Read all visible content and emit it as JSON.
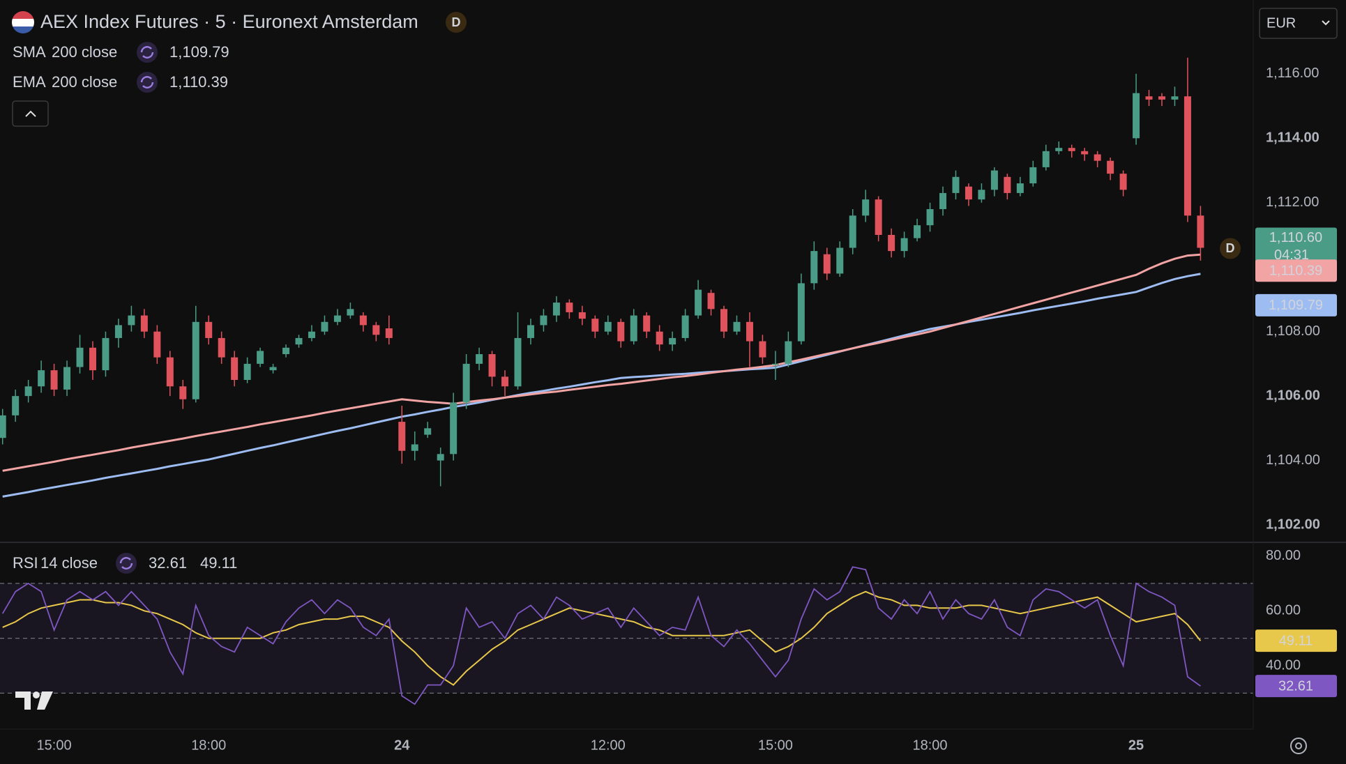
{
  "header": {
    "title": "AEX Index Futures · 5 · Euronext Amsterdam",
    "badge": "D",
    "currency": "EUR"
  },
  "chart_data": [
    {
      "type": "candlestick",
      "categories": [
        null,
        null,
        null,
        null,
        "15:00",
        null,
        null,
        null,
        null,
        null,
        null,
        null,
        null,
        null,
        null,
        null,
        "18:00",
        null,
        null,
        null,
        null,
        null,
        null,
        null,
        null,
        null,
        null,
        null,
        null,
        null,
        null,
        "24",
        null,
        null,
        null,
        null,
        null,
        null,
        null,
        null,
        null,
        null,
        null,
        null,
        null,
        null,
        null,
        "12:00",
        null,
        null,
        null,
        null,
        null,
        null,
        null,
        null,
        null,
        null,
        null,
        null,
        "15:00",
        null,
        null,
        null,
        null,
        null,
        null,
        null,
        null,
        null,
        null,
        null,
        "18:00",
        null,
        null,
        null,
        null,
        null,
        null,
        null,
        null,
        null,
        null,
        null,
        null,
        null,
        null,
        null,
        "25",
        null,
        null,
        null,
        null,
        null
      ],
      "open": [
        1104.7,
        1105.4,
        1106.0,
        1106.3,
        1106.8,
        1106.2,
        1106.9,
        1107.5,
        1106.8,
        1107.8,
        1108.2,
        1108.5,
        1108.0,
        1107.2,
        1106.3,
        1105.9,
        1108.3,
        1107.8,
        1107.2,
        1106.5,
        1107.0,
        1106.8,
        1107.3,
        1107.6,
        1107.8,
        1108.0,
        1108.3,
        1108.5,
        1108.5,
        1108.2,
        1108.1,
        1105.2,
        1104.3,
        1104.8,
        1104.0,
        1104.2,
        1105.8,
        1107.0,
        1107.3,
        1106.6,
        1106.3,
        1107.8,
        1108.2,
        1108.5,
        1108.9,
        1108.6,
        1108.4,
        1108.0,
        1108.3,
        1107.7,
        1108.5,
        1108.0,
        1107.6,
        1107.8,
        1108.5,
        1109.2,
        1108.7,
        1108.0,
        1108.3,
        1107.7,
        1107.0,
        1107.0,
        1107.7,
        1109.5,
        1110.4,
        1109.8,
        1110.6,
        1111.6,
        1112.1,
        1111.0,
        1110.5,
        1110.9,
        1111.3,
        1111.8,
        1112.3,
        1112.5,
        1112.1,
        1112.4,
        1112.8,
        1112.3,
        1112.6,
        1113.1,
        1113.6,
        1113.7,
        1113.6,
        1113.5,
        1113.3,
        1112.9,
        1114.0,
        1115.3,
        1115.3,
        1115.2,
        1115.3,
        1111.6
      ],
      "high": [
        1105.6,
        1106.2,
        1106.5,
        1107.1,
        1107.0,
        1107.1,
        1107.9,
        1107.7,
        1108.0,
        1108.4,
        1108.8,
        1108.7,
        1108.2,
        1107.4,
        1106.5,
        1108.8,
        1108.5,
        1108.0,
        1107.4,
        1107.2,
        1107.5,
        1107.0,
        1107.6,
        1107.9,
        1108.2,
        1108.5,
        1108.7,
        1108.9,
        1108.6,
        1108.3,
        1108.5,
        1105.7,
        1104.9,
        1105.2,
        1104.4,
        1106.1,
        1107.3,
        1107.5,
        1107.4,
        1106.8,
        1108.6,
        1108.4,
        1108.7,
        1109.1,
        1109.0,
        1108.8,
        1108.5,
        1108.5,
        1108.4,
        1108.7,
        1108.6,
        1108.2,
        1108.0,
        1108.7,
        1109.6,
        1109.3,
        1108.8,
        1108.5,
        1108.6,
        1107.9,
        1107.4,
        1108.0,
        1109.8,
        1110.8,
        1110.6,
        1110.8,
        1111.8,
        1112.4,
        1112.2,
        1111.2,
        1111.1,
        1111.5,
        1112.0,
        1112.5,
        1113.0,
        1112.6,
        1112.6,
        1113.1,
        1112.9,
        1112.8,
        1113.3,
        1113.8,
        1113.9,
        1113.8,
        1113.7,
        1113.6,
        1113.4,
        1113.0,
        1116.0,
        1115.5,
        1115.4,
        1115.6,
        1116.5,
        1111.9
      ],
      "low": [
        1104.5,
        1105.2,
        1105.8,
        1106.1,
        1106.0,
        1106.0,
        1106.7,
        1106.5,
        1106.6,
        1107.5,
        1108.0,
        1107.8,
        1107.0,
        1106.0,
        1105.6,
        1105.8,
        1107.6,
        1107.0,
        1106.3,
        1106.4,
        1106.9,
        1106.7,
        1107.2,
        1107.5,
        1107.7,
        1107.9,
        1108.2,
        1108.4,
        1108.0,
        1107.7,
        1107.6,
        1103.9,
        1104.0,
        1104.7,
        1103.2,
        1104.0,
        1105.6,
        1106.8,
        1106.3,
        1106.0,
        1106.2,
        1107.6,
        1108.0,
        1108.3,
        1108.4,
        1108.2,
        1107.8,
        1107.9,
        1107.5,
        1107.6,
        1107.8,
        1107.4,
        1107.4,
        1107.7,
        1108.4,
        1108.5,
        1107.8,
        1107.9,
        1106.9,
        1107.0,
        1106.5,
        1106.9,
        1107.6,
        1109.3,
        1109.6,
        1109.7,
        1110.4,
        1111.4,
        1110.8,
        1110.3,
        1110.3,
        1110.8,
        1111.1,
        1111.6,
        1112.1,
        1111.9,
        1112.0,
        1112.2,
        1112.1,
        1112.2,
        1112.5,
        1113.0,
        1113.5,
        1113.4,
        1113.3,
        1113.1,
        1112.7,
        1112.2,
        1113.8,
        1115.0,
        1115.0,
        1115.0,
        1111.4,
        1110.2
      ],
      "close": [
        1105.4,
        1106.0,
        1106.3,
        1106.8,
        1106.2,
        1106.9,
        1107.5,
        1106.8,
        1107.8,
        1108.2,
        1108.5,
        1108.0,
        1107.2,
        1106.3,
        1105.9,
        1108.3,
        1107.8,
        1107.2,
        1106.5,
        1107.0,
        1107.4,
        1106.9,
        1107.5,
        1107.8,
        1108.0,
        1108.3,
        1108.5,
        1108.7,
        1108.2,
        1107.9,
        1107.8,
        1104.3,
        1104.5,
        1105.0,
        1104.2,
        1105.8,
        1107.0,
        1107.3,
        1106.6,
        1106.3,
        1107.8,
        1108.2,
        1108.5,
        1108.9,
        1108.6,
        1108.4,
        1108.0,
        1108.3,
        1107.7,
        1108.5,
        1108.0,
        1107.6,
        1107.8,
        1108.5,
        1109.3,
        1108.7,
        1108.0,
        1108.3,
        1107.7,
        1107.2,
        1107.0,
        1107.7,
        1109.5,
        1110.5,
        1109.8,
        1110.6,
        1111.6,
        1112.1,
        1111.0,
        1110.5,
        1110.9,
        1111.3,
        1111.8,
        1112.3,
        1112.8,
        1112.1,
        1112.4,
        1113.0,
        1112.3,
        1112.6,
        1113.1,
        1113.6,
        1113.7,
        1113.6,
        1113.5,
        1113.3,
        1112.9,
        1112.4,
        1115.4,
        1115.2,
        1115.2,
        1115.3,
        1111.6,
        1110.6
      ],
      "up_color": "#4a9c86",
      "down_color": "#e0535d",
      "series": [
        {
          "name": "SMA",
          "params": "200 close",
          "color": "#9dbcf2",
          "last_label": "1,109.79",
          "values": [
            1102.88,
            1102.95,
            1103.02,
            1103.1,
            1103.17,
            1103.24,
            1103.31,
            1103.38,
            1103.46,
            1103.53,
            1103.6,
            1103.67,
            1103.74,
            1103.82,
            1103.89,
            1103.96,
            1104.03,
            1104.12,
            1104.21,
            1104.3,
            1104.39,
            1104.47,
            1104.56,
            1104.65,
            1104.74,
            1104.83,
            1104.92,
            1105.0,
            1105.09,
            1105.18,
            1105.27,
            1105.36,
            1105.43,
            1105.51,
            1105.58,
            1105.66,
            1105.73,
            1105.8,
            1105.88,
            1105.95,
            1106.03,
            1106.1,
            1106.16,
            1106.23,
            1106.29,
            1106.36,
            1106.43,
            1106.49,
            1106.56,
            1106.59,
            1106.61,
            1106.64,
            1106.67,
            1106.69,
            1106.72,
            1106.75,
            1106.77,
            1106.8,
            1106.83,
            1106.85,
            1106.88,
            1106.98,
            1107.08,
            1107.18,
            1107.28,
            1107.38,
            1107.48,
            1107.58,
            1107.68,
            1107.78,
            1107.88,
            1107.98,
            1108.08,
            1108.15,
            1108.22,
            1108.3,
            1108.37,
            1108.44,
            1108.51,
            1108.58,
            1108.66,
            1108.73,
            1108.8,
            1108.87,
            1108.94,
            1109.02,
            1109.09,
            1109.16,
            1109.23,
            1109.37,
            1109.51,
            1109.63,
            1109.72,
            1109.79
          ]
        },
        {
          "name": "EMA",
          "params": "200 close",
          "color": "#f2a3a3",
          "last_label": "1,110.39",
          "values": [
            1103.68,
            1103.75,
            1103.82,
            1103.89,
            1103.96,
            1104.04,
            1104.11,
            1104.18,
            1104.25,
            1104.32,
            1104.4,
            1104.47,
            1104.54,
            1104.61,
            1104.68,
            1104.76,
            1104.83,
            1104.9,
            1104.97,
            1105.04,
            1105.12,
            1105.19,
            1105.26,
            1105.33,
            1105.4,
            1105.48,
            1105.55,
            1105.62,
            1105.69,
            1105.76,
            1105.83,
            1105.9,
            1105.86,
            1105.82,
            1105.79,
            1105.76,
            1105.81,
            1105.86,
            1105.9,
            1105.95,
            1106.0,
            1106.05,
            1106.1,
            1106.14,
            1106.19,
            1106.24,
            1106.29,
            1106.34,
            1106.38,
            1106.43,
            1106.48,
            1106.53,
            1106.58,
            1106.62,
            1106.67,
            1106.72,
            1106.77,
            1106.82,
            1106.86,
            1106.91,
            1106.96,
            1107.05,
            1107.13,
            1107.22,
            1107.31,
            1107.39,
            1107.48,
            1107.57,
            1107.65,
            1107.74,
            1107.83,
            1107.91,
            1108.0,
            1108.11,
            1108.22,
            1108.33,
            1108.44,
            1108.55,
            1108.66,
            1108.77,
            1108.88,
            1108.99,
            1109.1,
            1109.21,
            1109.32,
            1109.43,
            1109.54,
            1109.65,
            1109.76,
            1109.95,
            1110.12,
            1110.26,
            1110.36,
            1110.39
          ]
        }
      ],
      "ylim": [
        1101.46,
        1118.29
      ],
      "yticks": [
        {
          "value": 1102,
          "label": "1,102.00"
        },
        {
          "value": 1104,
          "label": "1,104.00"
        },
        {
          "value": 1106,
          "label": "1,106.00"
        },
        {
          "value": 1108,
          "label": "1,108.00"
        },
        {
          "value": 1110,
          "label": "1,110.00"
        },
        {
          "value": 1112,
          "label": "1,112.00"
        },
        {
          "value": 1114,
          "label": "1,114.00"
        },
        {
          "value": 1116,
          "label": "1,116.00"
        }
      ],
      "last_price": {
        "value": 1110.6,
        "label": "1,110.60"
      },
      "countdown": "04:31",
      "marker": "D",
      "grid": true
    },
    {
      "type": "line",
      "series": [
        {
          "name": "RSI",
          "params": "14 close",
          "color": "#7e57c2",
          "last_label": "32.61",
          "values": [
            59,
            67,
            70,
            67,
            53,
            64,
            67,
            64,
            67,
            62,
            67,
            62,
            57,
            45,
            37,
            62,
            51,
            47,
            45,
            54,
            51,
            48,
            56,
            61,
            64,
            59,
            64,
            61,
            54,
            51,
            57,
            29,
            26,
            33,
            33,
            40,
            61,
            54,
            56,
            50,
            59,
            62,
            57,
            65,
            62,
            57,
            59,
            61,
            54,
            61,
            56,
            51,
            54,
            53,
            65,
            51,
            47,
            53,
            48,
            42,
            36,
            42,
            57,
            68,
            64,
            67,
            76,
            75,
            61,
            57,
            64,
            59,
            67,
            57,
            64,
            59,
            57,
            64,
            54,
            51,
            64,
            68,
            67,
            64,
            61,
            64,
            51,
            40,
            70,
            67,
            65,
            62,
            36,
            32.61
          ]
        },
        {
          "color": "#e8c84a",
          "last_label": "49.11",
          "values": [
            54,
            56,
            59,
            61,
            62,
            63,
            64,
            64,
            63,
            63,
            62,
            60,
            59,
            57,
            55,
            52,
            50,
            50,
            50,
            50,
            50,
            52,
            53,
            55,
            56,
            57,
            57,
            58,
            58,
            56,
            54,
            49,
            45,
            40,
            36,
            33,
            38,
            42,
            46,
            49,
            53,
            55,
            57,
            59,
            61,
            60,
            59,
            58,
            57,
            56,
            54,
            53,
            51,
            51,
            51,
            51,
            51,
            52,
            53,
            49,
            45,
            47,
            50,
            54,
            59,
            62,
            65,
            67,
            65,
            64,
            62,
            62,
            61,
            61,
            61,
            62,
            62,
            61,
            60,
            59,
            60,
            61,
            62,
            63,
            64,
            65,
            62,
            59,
            56,
            57,
            58,
            59,
            55,
            49.11
          ]
        }
      ],
      "ylim": [
        16.9,
        84.7
      ],
      "yticks": [
        {
          "value": 40,
          "label": "40.00"
        },
        {
          "value": 60,
          "label": "60.00"
        },
        {
          "value": 80,
          "label": "80.00"
        }
      ],
      "bands": [
        70,
        50,
        30
      ],
      "grid": true
    }
  ]
}
